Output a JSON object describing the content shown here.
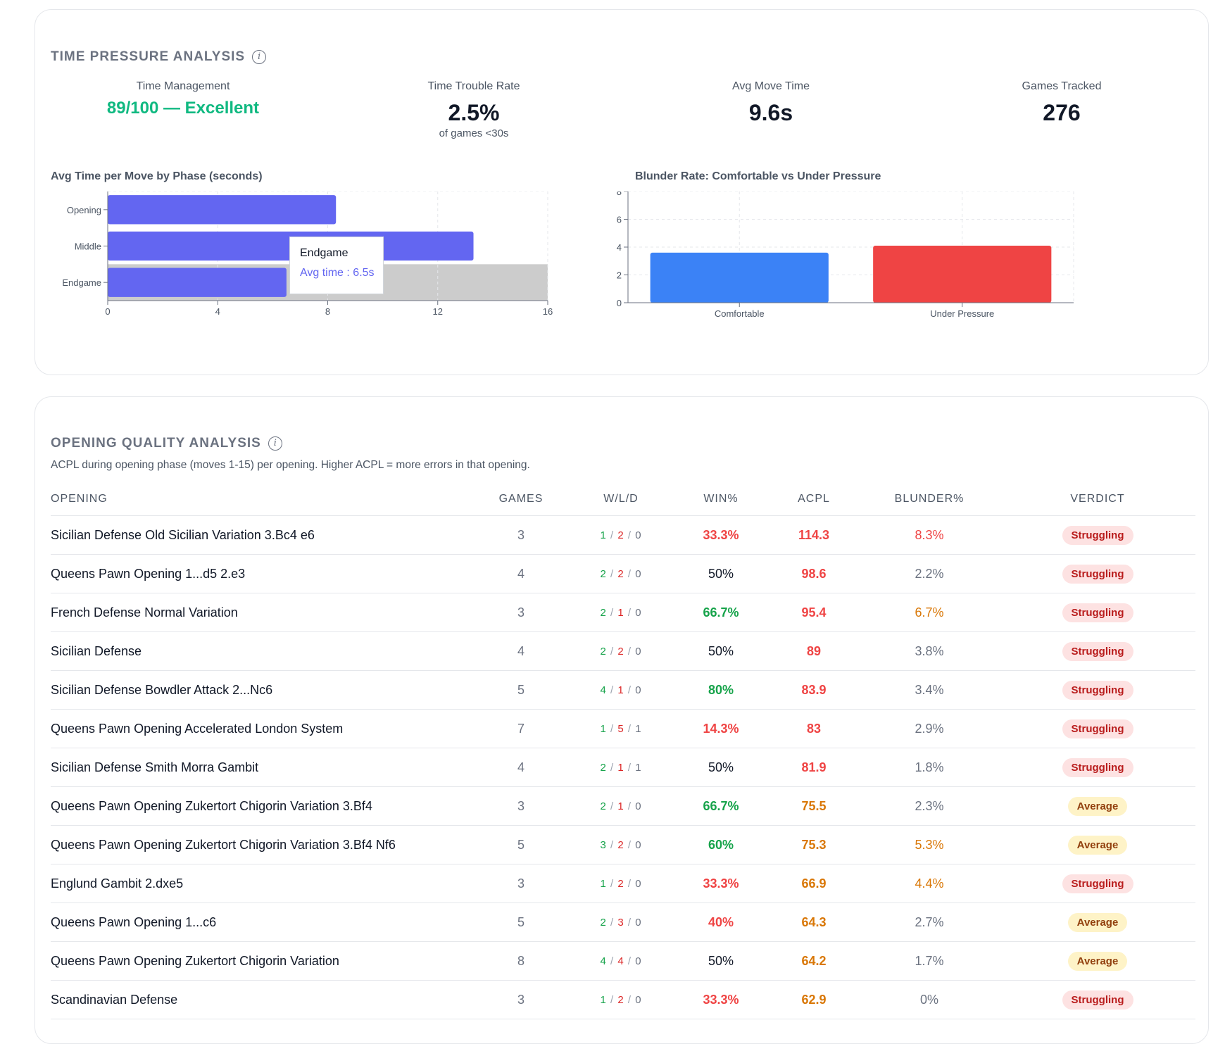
{
  "time_pressure": {
    "title": "TIME PRESSURE ANALYSIS",
    "info_icon": "info-icon",
    "stats": [
      {
        "label": "Time Management",
        "value": "89/100 — Excellent",
        "sub": ""
      },
      {
        "label": "Time Trouble Rate",
        "value": "2.5%",
        "sub": "of games <30s"
      },
      {
        "label": "Avg Move Time",
        "value": "9.6s",
        "sub": ""
      },
      {
        "label": "Games Tracked",
        "value": "276",
        "sub": ""
      }
    ],
    "accent_color": "#10b981"
  },
  "chart_data": [
    {
      "type": "bar",
      "orientation": "horizontal",
      "title": "Avg Time per Move by Phase (seconds)",
      "categories": [
        "Opening",
        "Middle",
        "Endgame"
      ],
      "values": [
        8.3,
        13.3,
        6.5
      ],
      "xlim": [
        0,
        16
      ],
      "xticks": [
        "0",
        "4",
        "8",
        "12",
        "16"
      ],
      "color": "#6366f1",
      "highlighted_category": "Endgame",
      "tooltip": {
        "title": "Endgame",
        "text": "Avg time : 6.5s"
      }
    },
    {
      "type": "bar",
      "title": "Blunder Rate: Comfortable vs Under Pressure",
      "categories": [
        "Comfortable",
        "Under Pressure"
      ],
      "values": [
        3.6,
        4.1
      ],
      "ylim": [
        0,
        8
      ],
      "yticks": [
        "0",
        "2",
        "4",
        "6",
        "8"
      ],
      "colors": [
        "#3b82f6",
        "#ef4444"
      ]
    }
  ],
  "opening_quality": {
    "title": "OPENING QUALITY ANALYSIS",
    "subtitle": "ACPL during opening phase (moves 1-15) per opening. Higher ACPL = more errors in that opening.",
    "headers": [
      "OPENING",
      "GAMES",
      "W/L/D",
      "WIN%",
      "ACPL",
      "BLUNDER%",
      "VERDICT"
    ],
    "rows": [
      {
        "name": "Sicilian Defense Old Sicilian Variation 3.Bc4 e6",
        "games": "3",
        "w": "1",
        "l": "2",
        "d": "0",
        "win": "33.3%",
        "acpl": "114.3",
        "blunder": "8.3%",
        "verdict": "Struggling"
      },
      {
        "name": "Queens Pawn Opening 1...d5 2.e3",
        "games": "4",
        "w": "2",
        "l": "2",
        "d": "0",
        "win": "50%",
        "acpl": "98.6",
        "blunder": "2.2%",
        "verdict": "Struggling"
      },
      {
        "name": "French Defense Normal Variation",
        "games": "3",
        "w": "2",
        "l": "1",
        "d": "0",
        "win": "66.7%",
        "acpl": "95.4",
        "blunder": "6.7%",
        "verdict": "Struggling"
      },
      {
        "name": "Sicilian Defense",
        "games": "4",
        "w": "2",
        "l": "2",
        "d": "0",
        "win": "50%",
        "acpl": "89",
        "blunder": "3.8%",
        "verdict": "Struggling"
      },
      {
        "name": "Sicilian Defense Bowdler Attack 2...Nc6",
        "games": "5",
        "w": "4",
        "l": "1",
        "d": "0",
        "win": "80%",
        "acpl": "83.9",
        "blunder": "3.4%",
        "verdict": "Struggling"
      },
      {
        "name": "Queens Pawn Opening Accelerated London System",
        "games": "7",
        "w": "1",
        "l": "5",
        "d": "1",
        "win": "14.3%",
        "acpl": "83",
        "blunder": "2.9%",
        "verdict": "Struggling"
      },
      {
        "name": "Sicilian Defense Smith Morra Gambit",
        "games": "4",
        "w": "2",
        "l": "1",
        "d": "1",
        "win": "50%",
        "acpl": "81.9",
        "blunder": "1.8%",
        "verdict": "Struggling"
      },
      {
        "name": "Queens Pawn Opening Zukertort Chigorin Variation 3.Bf4",
        "games": "3",
        "w": "2",
        "l": "1",
        "d": "0",
        "win": "66.7%",
        "acpl": "75.5",
        "blunder": "2.3%",
        "verdict": "Average"
      },
      {
        "name": "Queens Pawn Opening Zukertort Chigorin Variation 3.Bf4 Nf6",
        "games": "5",
        "w": "3",
        "l": "2",
        "d": "0",
        "win": "60%",
        "acpl": "75.3",
        "blunder": "5.3%",
        "verdict": "Average"
      },
      {
        "name": "Englund Gambit 2.dxe5",
        "games": "3",
        "w": "1",
        "l": "2",
        "d": "0",
        "win": "33.3%",
        "acpl": "66.9",
        "blunder": "4.4%",
        "verdict": "Struggling"
      },
      {
        "name": "Queens Pawn Opening 1...c6",
        "games": "5",
        "w": "2",
        "l": "3",
        "d": "0",
        "win": "40%",
        "acpl": "64.3",
        "blunder": "2.7%",
        "verdict": "Average"
      },
      {
        "name": "Queens Pawn Opening Zukertort Chigorin Variation",
        "games": "8",
        "w": "4",
        "l": "4",
        "d": "0",
        "win": "50%",
        "acpl": "64.2",
        "blunder": "1.7%",
        "verdict": "Average"
      },
      {
        "name": "Scandinavian Defense",
        "games": "3",
        "w": "1",
        "l": "2",
        "d": "0",
        "win": "33.3%",
        "acpl": "62.9",
        "blunder": "0%",
        "verdict": "Struggling"
      }
    ]
  }
}
